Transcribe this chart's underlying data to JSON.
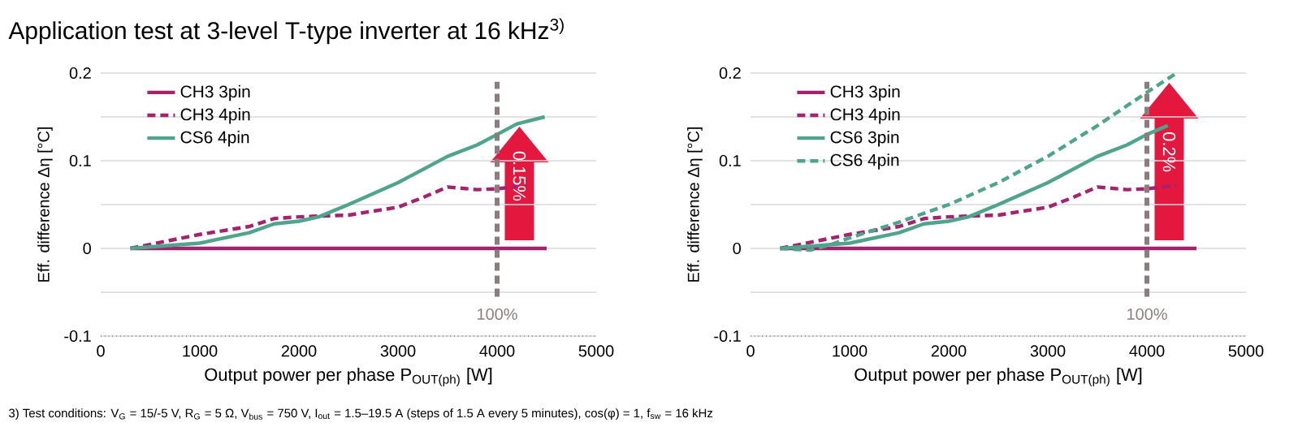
{
  "chart_data": [
    {
      "type": "line",
      "title": "Application test at 3-level T-type inverter at 16 kHz$^{3)}$",
      "xlabel": "Output power per phase P$_{OUT(ph)}$ [W]",
      "ylabel": "Eff. difference Δη [°C]",
      "xlim": [
        0,
        5000
      ],
      "xticks": [
        0,
        1000,
        2000,
        3000,
        4000,
        5000
      ],
      "ylim": [
        -0.1,
        0.2
      ],
      "yticks": [
        -0.1,
        {
          "value": -0.05,
          "label": null
        },
        0,
        {
          "value": 0.05,
          "label": null
        },
        0.1,
        {
          "value": 0.15,
          "label": null
        },
        0.2
      ],
      "grid": "y",
      "legend": "top left",
      "series": [
        {
          "name": "CH3 3pin",
          "color": "#a5226f",
          "line_style": "solid",
          "x": [
            300,
            4500
          ],
          "values": [
            0,
            0
          ]
        },
        {
          "name": "CH3 4pin",
          "color": "#a5226f",
          "line_style": "dashed",
          "x": [
            300,
            1000,
            1500,
            1750,
            2000,
            2500,
            3000,
            3250,
            3500,
            3800,
            4000,
            4300
          ],
          "values": [
            0,
            0.016,
            0.025,
            0.034,
            0.036,
            0.038,
            0.047,
            0.058,
            0.07,
            0.067,
            0.068,
            0.072
          ]
        },
        {
          "name": "CS6 4pin",
          "color": "#4fa58b",
          "line_style": "solid",
          "x": [
            300,
            1000,
            1500,
            1750,
            2000,
            2200,
            2500,
            3000,
            3500,
            3800,
            4000,
            4200,
            4480
          ],
          "values": [
            0,
            0.006,
            0.018,
            0.028,
            0.031,
            0.036,
            0.05,
            0.075,
            0.105,
            0.118,
            0.13,
            0.142,
            0.15
          ]
        }
      ],
      "ref_lines": [
        {
          "axis": "x",
          "value": 4000,
          "color": "#8b7d7d",
          "line_style": "dashed"
        }
      ],
      "annotations": [
        "0.15%",
        "100%",
        "3) Test conditions: V$_{G}$ = 15/-5 V, R$_{G}$ = 5 Ω, V$_{bus}$ = 750 V, I$_{out}$ = 1.5–19.5 A (steps of 1.5 A every 5 minutes), cos(φ) = 1, f$_{sw}$ = 16 kHz"
      ]
    },
    {
      "type": "line",
      "xlabel": "Output power per phase P$_{OUT(ph)}$ [W]",
      "ylabel": "Eff. difference Δη [°C]",
      "xlim": [
        0,
        5000
      ],
      "xticks": [
        0,
        1000,
        2000,
        3000,
        4000,
        5000
      ],
      "ylim": [
        -0.1,
        0.2
      ],
      "yticks": [
        -0.1,
        {
          "value": -0.05,
          "label": null
        },
        0,
        {
          "value": 0.05,
          "label": null
        },
        0.1,
        {
          "value": 0.15,
          "label": null
        },
        0.2
      ],
      "grid": "y",
      "legend": "top left",
      "series": [
        {
          "name": "CH3 3pin",
          "color": "#a5226f",
          "line_style": "solid",
          "x": [
            300,
            4500
          ],
          "values": [
            0,
            0
          ]
        },
        {
          "name": "CH3 4pin",
          "color": "#a5226f",
          "line_style": "dashed",
          "x": [
            300,
            1000,
            1500,
            1750,
            2000,
            2500,
            3000,
            3250,
            3500,
            3800,
            4000,
            4300
          ],
          "values": [
            0,
            0.016,
            0.025,
            0.034,
            0.036,
            0.038,
            0.047,
            0.058,
            0.07,
            0.067,
            0.068,
            0.072
          ]
        },
        {
          "name": "CS6 3pin",
          "color": "#4fa58b",
          "line_style": "solid",
          "x": [
            300,
            1000,
            1500,
            1750,
            2000,
            2200,
            2500,
            3000,
            3500,
            3800,
            4000,
            4210
          ],
          "values": [
            0,
            0.006,
            0.018,
            0.028,
            0.031,
            0.036,
            0.05,
            0.075,
            0.105,
            0.118,
            0.13,
            0.14
          ]
        },
        {
          "name": "CS6 4pin",
          "color": "#4fa58b",
          "line_style": "dashed",
          "x": [
            300,
            600,
            800,
            1000,
            1500,
            2000,
            2500,
            3000,
            3500,
            4000,
            4300
          ],
          "values": [
            0,
            -0.002,
            0.004,
            0.012,
            0.03,
            0.05,
            0.075,
            0.105,
            0.14,
            0.178,
            0.2
          ]
        }
      ],
      "ref_lines": [
        {
          "axis": "x",
          "value": 4000,
          "color": "#8b7d7d",
          "line_style": "dashed"
        }
      ],
      "annotations": [
        "0.2%",
        "100%"
      ]
    }
  ]
}
